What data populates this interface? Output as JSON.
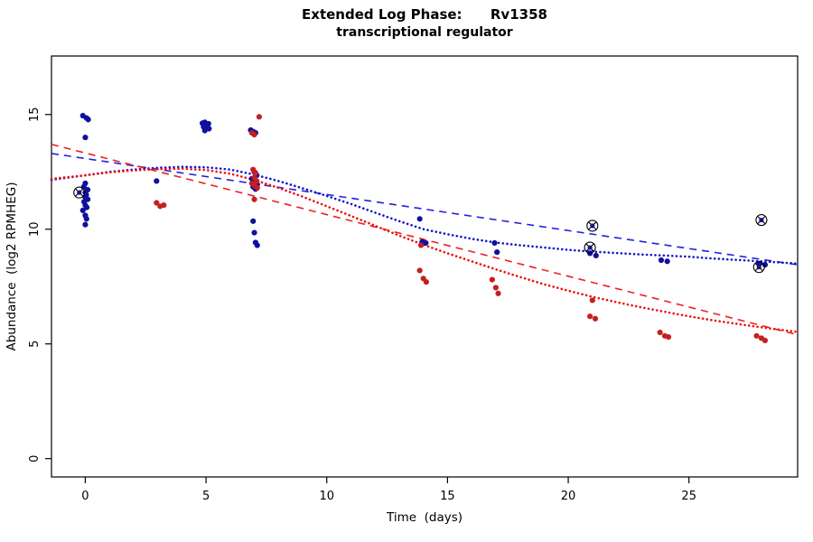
{
  "chart_data": {
    "type": "scatter",
    "title": "Extended Log Phase:      Rv1358",
    "subtitle": "transcriptional regulator",
    "xlabel": "Time  (days)",
    "ylabel": "Abundance  (log2 RPMHEG)",
    "xlim": [
      -1.4,
      29.5
    ],
    "ylim": [
      -0.8,
      17.55
    ],
    "xticks": [
      0,
      5,
      10,
      15,
      20,
      25
    ],
    "yticks": [
      0,
      5,
      10,
      15
    ],
    "grid": false,
    "legend": "none",
    "series": [
      {
        "name": "sample-points-blue",
        "color": "#10109E",
        "marker": "dot",
        "points": [
          [
            -0.1,
            14.95
          ],
          [
            0.05,
            14.85
          ],
          [
            0.12,
            14.78
          ],
          [
            0.0,
            14.0
          ],
          [
            0.0,
            12.0
          ],
          [
            -0.06,
            11.85
          ],
          [
            0.1,
            11.72
          ],
          [
            0.0,
            11.6
          ],
          [
            0.04,
            11.5
          ],
          [
            0.0,
            11.4
          ],
          [
            0.1,
            11.3
          ],
          [
            -0.05,
            11.2
          ],
          [
            0.0,
            11.05
          ],
          [
            0.06,
            10.95
          ],
          [
            -0.1,
            10.82
          ],
          [
            0.0,
            10.6
          ],
          [
            0.05,
            10.45
          ],
          [
            0.0,
            10.2
          ],
          [
            2.95,
            12.1
          ],
          [
            4.85,
            14.62
          ],
          [
            4.95,
            14.66
          ],
          [
            5.02,
            14.56
          ],
          [
            5.1,
            14.6
          ],
          [
            4.9,
            14.46
          ],
          [
            5.0,
            14.42
          ],
          [
            5.12,
            14.38
          ],
          [
            4.95,
            14.3
          ],
          [
            5.05,
            14.5
          ],
          [
            6.85,
            14.32
          ],
          [
            6.95,
            14.26
          ],
          [
            7.05,
            14.2
          ],
          [
            7.0,
            12.5
          ],
          [
            7.1,
            12.35
          ],
          [
            6.9,
            12.2
          ],
          [
            7.0,
            12.05
          ],
          [
            7.12,
            11.95
          ],
          [
            6.95,
            11.85
          ],
          [
            7.05,
            11.75
          ],
          [
            6.95,
            10.35
          ],
          [
            7.0,
            9.85
          ],
          [
            7.05,
            9.42
          ],
          [
            7.12,
            9.3
          ],
          [
            13.85,
            10.45
          ],
          [
            13.95,
            9.45
          ],
          [
            14.1,
            9.4
          ],
          [
            16.95,
            9.4
          ],
          [
            17.05,
            9.0
          ],
          [
            20.9,
            8.95
          ],
          [
            21.15,
            8.85
          ],
          [
            23.85,
            8.65
          ],
          [
            24.1,
            8.6
          ],
          [
            27.9,
            8.5
          ],
          [
            28.15,
            8.45
          ]
        ]
      },
      {
        "name": "sample-points-red",
        "color": "#C42020",
        "marker": "dot",
        "points": [
          [
            2.95,
            11.15
          ],
          [
            3.1,
            11.0
          ],
          [
            3.25,
            11.05
          ],
          [
            7.2,
            14.9
          ],
          [
            6.9,
            14.2
          ],
          [
            7.0,
            14.12
          ],
          [
            6.95,
            12.6
          ],
          [
            7.05,
            12.45
          ],
          [
            7.0,
            12.25
          ],
          [
            7.1,
            12.1
          ],
          [
            6.9,
            12.0
          ],
          [
            7.02,
            11.9
          ],
          [
            7.12,
            11.8
          ],
          [
            7.0,
            11.3
          ],
          [
            13.9,
            9.3
          ],
          [
            13.85,
            8.2
          ],
          [
            14.0,
            7.85
          ],
          [
            14.12,
            7.7
          ],
          [
            16.85,
            7.8
          ],
          [
            17.0,
            7.45
          ],
          [
            17.1,
            7.2
          ],
          [
            21.0,
            6.9
          ],
          [
            20.9,
            6.2
          ],
          [
            21.12,
            6.1
          ],
          [
            23.8,
            5.5
          ],
          [
            24.0,
            5.35
          ],
          [
            24.15,
            5.3
          ],
          [
            27.8,
            5.35
          ],
          [
            28.0,
            5.25
          ],
          [
            28.15,
            5.15
          ]
        ]
      },
      {
        "name": "flagged-points",
        "color": "#000000",
        "dot_color": "#14148C",
        "marker": "circle-x",
        "points": [
          [
            -0.25,
            11.6
          ],
          [
            21.0,
            10.15
          ],
          [
            20.9,
            9.2
          ],
          [
            28.0,
            10.4
          ],
          [
            27.9,
            8.35
          ]
        ]
      }
    ],
    "trend_lines": [
      {
        "name": "blue-linear-fit",
        "style": "dashed",
        "color": "#2222DD",
        "width": 1.6,
        "points": [
          [
            -1.4,
            13.3
          ],
          [
            29.5,
            8.45
          ]
        ]
      },
      {
        "name": "red-linear-fit",
        "style": "dashed",
        "color": "#EE2020",
        "width": 1.6,
        "points": [
          [
            -1.4,
            13.7
          ],
          [
            29.5,
            5.4
          ]
        ]
      },
      {
        "name": "blue-smooth-fit",
        "style": "dotted",
        "color": "#1515CC",
        "width": 2.6,
        "points": [
          [
            -1.4,
            12.15
          ],
          [
            0,
            12.35
          ],
          [
            1,
            12.5
          ],
          [
            2,
            12.6
          ],
          [
            3,
            12.68
          ],
          [
            4,
            12.72
          ],
          [
            5,
            12.7
          ],
          [
            6,
            12.6
          ],
          [
            7,
            12.38
          ],
          [
            8,
            12.1
          ],
          [
            9,
            11.78
          ],
          [
            10,
            11.45
          ],
          [
            11,
            11.1
          ],
          [
            12,
            10.72
          ],
          [
            13,
            10.35
          ],
          [
            14,
            10.0
          ],
          [
            15,
            9.78
          ],
          [
            16,
            9.58
          ],
          [
            17,
            9.42
          ],
          [
            18,
            9.3
          ],
          [
            19,
            9.2
          ],
          [
            20,
            9.1
          ],
          [
            21,
            9.02
          ],
          [
            22,
            8.96
          ],
          [
            23,
            8.9
          ],
          [
            24,
            8.85
          ],
          [
            25,
            8.8
          ],
          [
            26,
            8.72
          ],
          [
            27,
            8.66
          ],
          [
            28,
            8.6
          ],
          [
            29.5,
            8.5
          ]
        ]
      },
      {
        "name": "red-smooth-fit",
        "style": "dotted",
        "color": "#EE1010",
        "width": 2.6,
        "points": [
          [
            -1.4,
            12.2
          ],
          [
            0,
            12.35
          ],
          [
            1,
            12.48
          ],
          [
            2,
            12.56
          ],
          [
            3,
            12.62
          ],
          [
            4,
            12.64
          ],
          [
            5,
            12.58
          ],
          [
            6,
            12.42
          ],
          [
            7,
            12.15
          ],
          [
            8,
            11.8
          ],
          [
            9,
            11.42
          ],
          [
            10,
            11.0
          ],
          [
            11,
            10.58
          ],
          [
            12,
            10.15
          ],
          [
            13,
            9.72
          ],
          [
            14,
            9.32
          ],
          [
            15,
            8.95
          ],
          [
            16,
            8.6
          ],
          [
            17,
            8.25
          ],
          [
            18,
            7.92
          ],
          [
            19,
            7.6
          ],
          [
            20,
            7.32
          ],
          [
            21,
            7.05
          ],
          [
            22,
            6.82
          ],
          [
            23,
            6.6
          ],
          [
            24,
            6.4
          ],
          [
            25,
            6.2
          ],
          [
            26,
            6.03
          ],
          [
            27,
            5.87
          ],
          [
            28,
            5.72
          ],
          [
            29.5,
            5.52
          ]
        ]
      }
    ]
  }
}
